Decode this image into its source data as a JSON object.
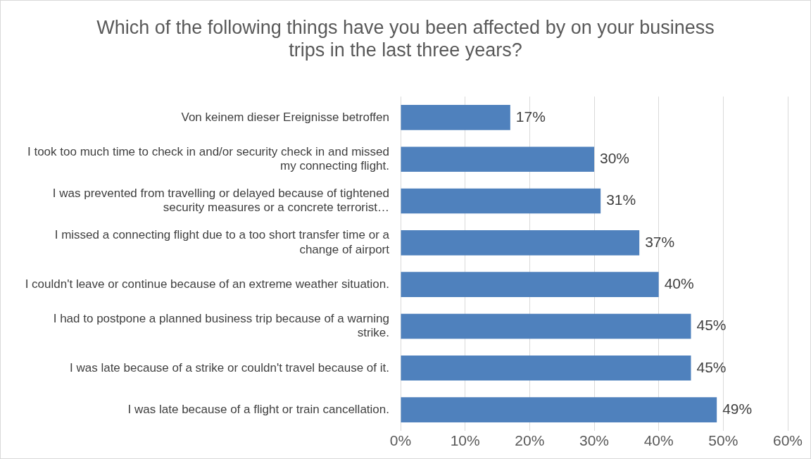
{
  "chart_data": {
    "type": "bar",
    "orientation": "horizontal",
    "title": "Which of the following things have you been affected by on your business trips in the last three years?",
    "categories": [
      "Von keinem dieser Ereignisse betroffen",
      "I took too much time to check in and/or security check in and missed my connecting flight.",
      "I was prevented from travelling or delayed because of tightened security measures or a concrete terrorist…",
      "I missed a connecting flight due to a too short transfer time or a change of airport",
      "I couldn't leave or continue because of an extreme weather situation.",
      "I had to postpone a planned business trip because of a warning strike.",
      "I was late because of a strike or couldn't travel because of it.",
      "I was late because of a flight or train cancellation."
    ],
    "values": [
      17,
      30,
      31,
      37,
      40,
      45,
      45,
      49
    ],
    "value_labels": [
      "17%",
      "30%",
      "31%",
      "37%",
      "40%",
      "45%",
      "45%",
      "49%"
    ],
    "color": "#4f81bd",
    "xlim": [
      0,
      60
    ],
    "xticks": [
      {
        "value": 0,
        "label": "0%"
      },
      {
        "value": 10,
        "label": "10%"
      },
      {
        "value": 20,
        "label": "20%"
      },
      {
        "value": 30,
        "label": "30%"
      },
      {
        "value": 40,
        "label": "40%"
      },
      {
        "value": 50,
        "label": "50%"
      },
      {
        "value": 60,
        "label": "60%"
      }
    ],
    "grid": "x",
    "legend": false
  }
}
